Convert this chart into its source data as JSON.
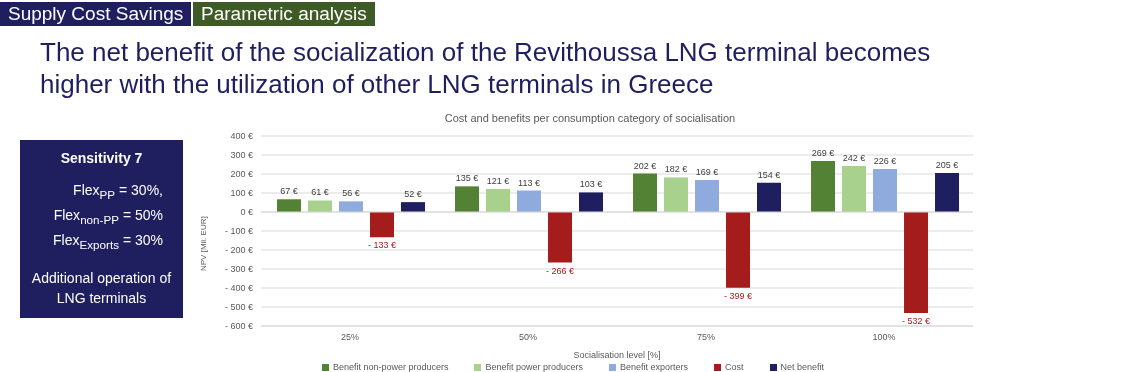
{
  "chart_data": {
    "type": "bar",
    "title": "The net benefit of the socialization of the Revithoussa LNG terminal becomes higher with the utilization of other LNG terminals in Greece",
    "subtitle": "Cost and benefits per consumption category of socialisation",
    "xlabel": "Socialisation level [%]",
    "ylabel": "NPV [Mil. EUR]",
    "annotations": [
      "Supply Cost Savings",
      "Parametric analysis",
      "Sensitivity 7",
      "Flex$_{PP}$ = 30%,",
      "Flex$_{non-PP}$ = 50%",
      "Flex$_{Exports}$ = 30%",
      "Additional operation of LNG terminals"
    ],
    "categories": [
      "25%",
      "50%",
      "75%",
      "100%"
    ],
    "series": [
      {
        "name": "Benefit non-power producers",
        "color": "#548235",
        "values": [
          67,
          135,
          202,
          269
        ],
        "value_labels": [
          "67 €",
          "135 €",
          "202 €",
          "269 €"
        ]
      },
      {
        "name": "Benefit power producers",
        "color": "#a9d18e",
        "values": [
          61,
          121,
          182,
          242
        ],
        "value_labels": [
          "61 €",
          "121 €",
          "182 €",
          "242 €"
        ]
      },
      {
        "name": "Benefit exporters",
        "color": "#8faadc",
        "values": [
          56,
          113,
          169,
          226
        ],
        "value_labels": [
          "56 €",
          "113 €",
          "169 €",
          "226 €"
        ]
      },
      {
        "name": "Cost",
        "color": "#a51c1c",
        "values": [
          -133,
          -266,
          -399,
          -532
        ],
        "value_labels": [
          "- 133 €",
          "- 266 €",
          "- 399 €",
          "- 532 €"
        ]
      },
      {
        "name": "Net benefit",
        "color": "#1f1f5f",
        "values": [
          52,
          103,
          154,
          205
        ],
        "value_labels": [
          "52 €",
          "103 €",
          "154 €",
          "205 €"
        ]
      }
    ],
    "ylim": [
      -600,
      400
    ],
    "yticks": [
      {
        "value": -600,
        "label": "- 600 €"
      },
      {
        "value": -500,
        "label": "- 500 €"
      },
      {
        "value": -400,
        "label": "- 400 €"
      },
      {
        "value": -300,
        "label": "- 300 €"
      },
      {
        "value": -200,
        "label": "- 200 €"
      },
      {
        "value": -100,
        "label": "- 100 €"
      },
      {
        "value": 0,
        "label": "0 €"
      },
      {
        "value": 100,
        "label": "100 €"
      },
      {
        "value": 200,
        "label": "200 €"
      },
      {
        "value": 300,
        "label": "300 €"
      },
      {
        "value": 400,
        "label": "400 €"
      }
    ],
    "grid": "y",
    "legend": "bottom"
  }
}
